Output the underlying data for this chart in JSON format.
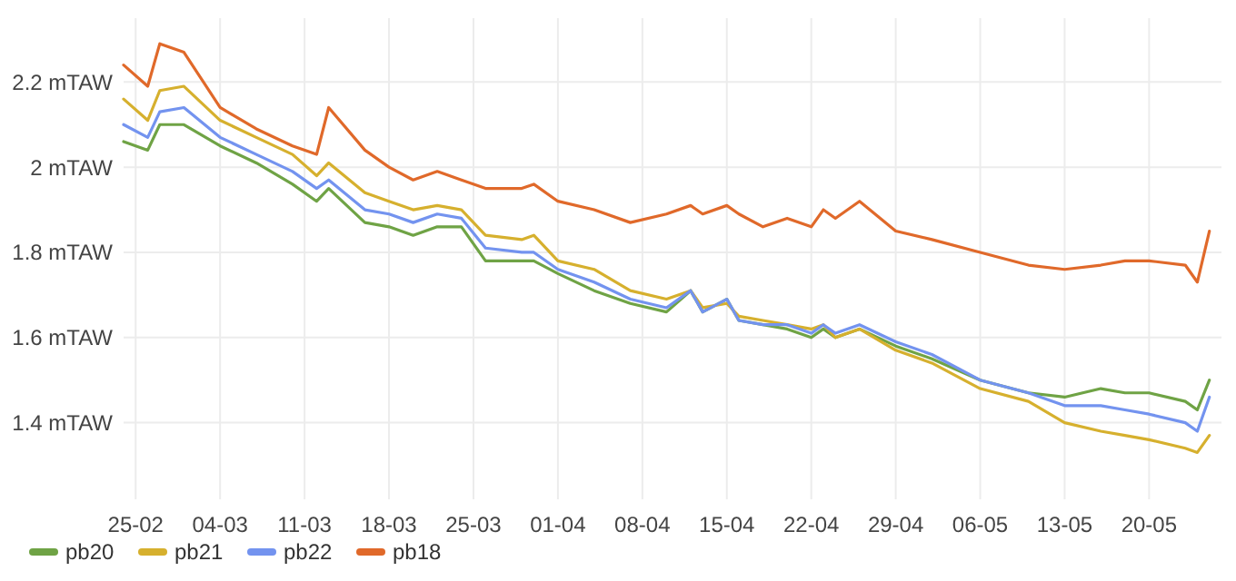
{
  "chart_data": {
    "type": "line",
    "x": [
      "--02-24",
      "--02-26",
      "--02-27",
      "--03-01",
      "--03-04",
      "--03-07",
      "--03-10",
      "--03-12",
      "--03-13",
      "--03-16",
      "--03-18",
      "--03-20",
      "--03-22",
      "--03-24",
      "--03-26",
      "--03-29",
      "--03-30",
      "--04-01",
      "--04-04",
      "--04-07",
      "--04-10",
      "--04-12",
      "--04-13",
      "--04-15",
      "--04-16",
      "--04-18",
      "--04-20",
      "--04-22",
      "--04-23",
      "--04-24",
      "--04-26",
      "--04-29",
      "--05-02",
      "--05-06",
      "--05-10",
      "--05-13",
      "--05-16",
      "--05-18",
      "--05-20",
      "--05-23",
      "--05-24",
      "--05-25"
    ],
    "series": [
      {
        "name": "pb20",
        "color": "#6fa345",
        "values": [
          2.06,
          2.04,
          2.1,
          2.1,
          2.05,
          2.01,
          1.96,
          1.92,
          1.95,
          1.87,
          1.86,
          1.84,
          1.86,
          1.86,
          1.78,
          1.78,
          1.78,
          1.75,
          1.71,
          1.68,
          1.66,
          1.71,
          1.66,
          1.69,
          1.64,
          1.63,
          1.62,
          1.6,
          1.62,
          1.6,
          1.62,
          1.58,
          1.55,
          1.5,
          1.47,
          1.46,
          1.48,
          1.47,
          1.47,
          1.45,
          1.43,
          1.5
        ]
      },
      {
        "name": "pb21",
        "color": "#d6b02e",
        "values": [
          2.16,
          2.11,
          2.18,
          2.19,
          2.11,
          2.07,
          2.03,
          1.98,
          2.01,
          1.94,
          1.92,
          1.9,
          1.91,
          1.9,
          1.84,
          1.83,
          1.84,
          1.78,
          1.76,
          1.71,
          1.69,
          1.71,
          1.67,
          1.68,
          1.65,
          1.64,
          1.63,
          1.62,
          1.63,
          1.6,
          1.62,
          1.57,
          1.54,
          1.48,
          1.45,
          1.4,
          1.38,
          1.37,
          1.36,
          1.34,
          1.33,
          1.37
        ]
      },
      {
        "name": "pb22",
        "color": "#7393ef",
        "values": [
          2.1,
          2.07,
          2.13,
          2.14,
          2.07,
          2.03,
          1.99,
          1.95,
          1.97,
          1.9,
          1.89,
          1.87,
          1.89,
          1.88,
          1.81,
          1.8,
          1.8,
          1.76,
          1.73,
          1.69,
          1.67,
          1.71,
          1.66,
          1.69,
          1.64,
          1.63,
          1.63,
          1.61,
          1.63,
          1.61,
          1.63,
          1.59,
          1.56,
          1.5,
          1.47,
          1.44,
          1.44,
          1.43,
          1.42,
          1.4,
          1.38,
          1.46
        ]
      },
      {
        "name": "pb18",
        "color": "#e0692a",
        "values": [
          2.24,
          2.19,
          2.29,
          2.27,
          2.14,
          2.09,
          2.05,
          2.03,
          2.14,
          2.04,
          2.0,
          1.97,
          1.99,
          1.97,
          1.95,
          1.95,
          1.96,
          1.92,
          1.9,
          1.87,
          1.89,
          1.91,
          1.89,
          1.91,
          1.89,
          1.86,
          1.88,
          1.86,
          1.9,
          1.88,
          1.92,
          1.85,
          1.83,
          1.8,
          1.77,
          1.76,
          1.77,
          1.78,
          1.78,
          1.77,
          1.73,
          1.85
        ]
      }
    ],
    "xlim": [
      "--02-24",
      "--05-26"
    ],
    "xticks": [
      {
        "value": "--02-25",
        "label": "25-02"
      },
      {
        "value": "--03-04",
        "label": "04-03"
      },
      {
        "value": "--03-11",
        "label": "11-03"
      },
      {
        "value": "--03-18",
        "label": "18-03"
      },
      {
        "value": "--03-25",
        "label": "25-03"
      },
      {
        "value": "--04-01",
        "label": "01-04"
      },
      {
        "value": "--04-08",
        "label": "08-04"
      },
      {
        "value": "--04-15",
        "label": "15-04"
      },
      {
        "value": "--04-22",
        "label": "22-04"
      },
      {
        "value": "--04-29",
        "label": "29-04"
      },
      {
        "value": "--05-06",
        "label": "06-05"
      },
      {
        "value": "--05-13",
        "label": "13-05"
      },
      {
        "value": "--05-20",
        "label": "20-05"
      }
    ],
    "ylim": [
      1.22,
      2.35
    ],
    "yticks": [
      {
        "value": 1.4,
        "label": "1.4 mTAW"
      },
      {
        "value": 1.6,
        "label": "1.6 mTAW"
      },
      {
        "value": 1.8,
        "label": "1.8 mTAW"
      },
      {
        "value": 2,
        "label": "2 mTAW"
      },
      {
        "value": 2.2,
        "label": "2.2 mTAW"
      }
    ],
    "grid": true,
    "legend": "bottom",
    "marker": "none",
    "line_style": "solid"
  }
}
